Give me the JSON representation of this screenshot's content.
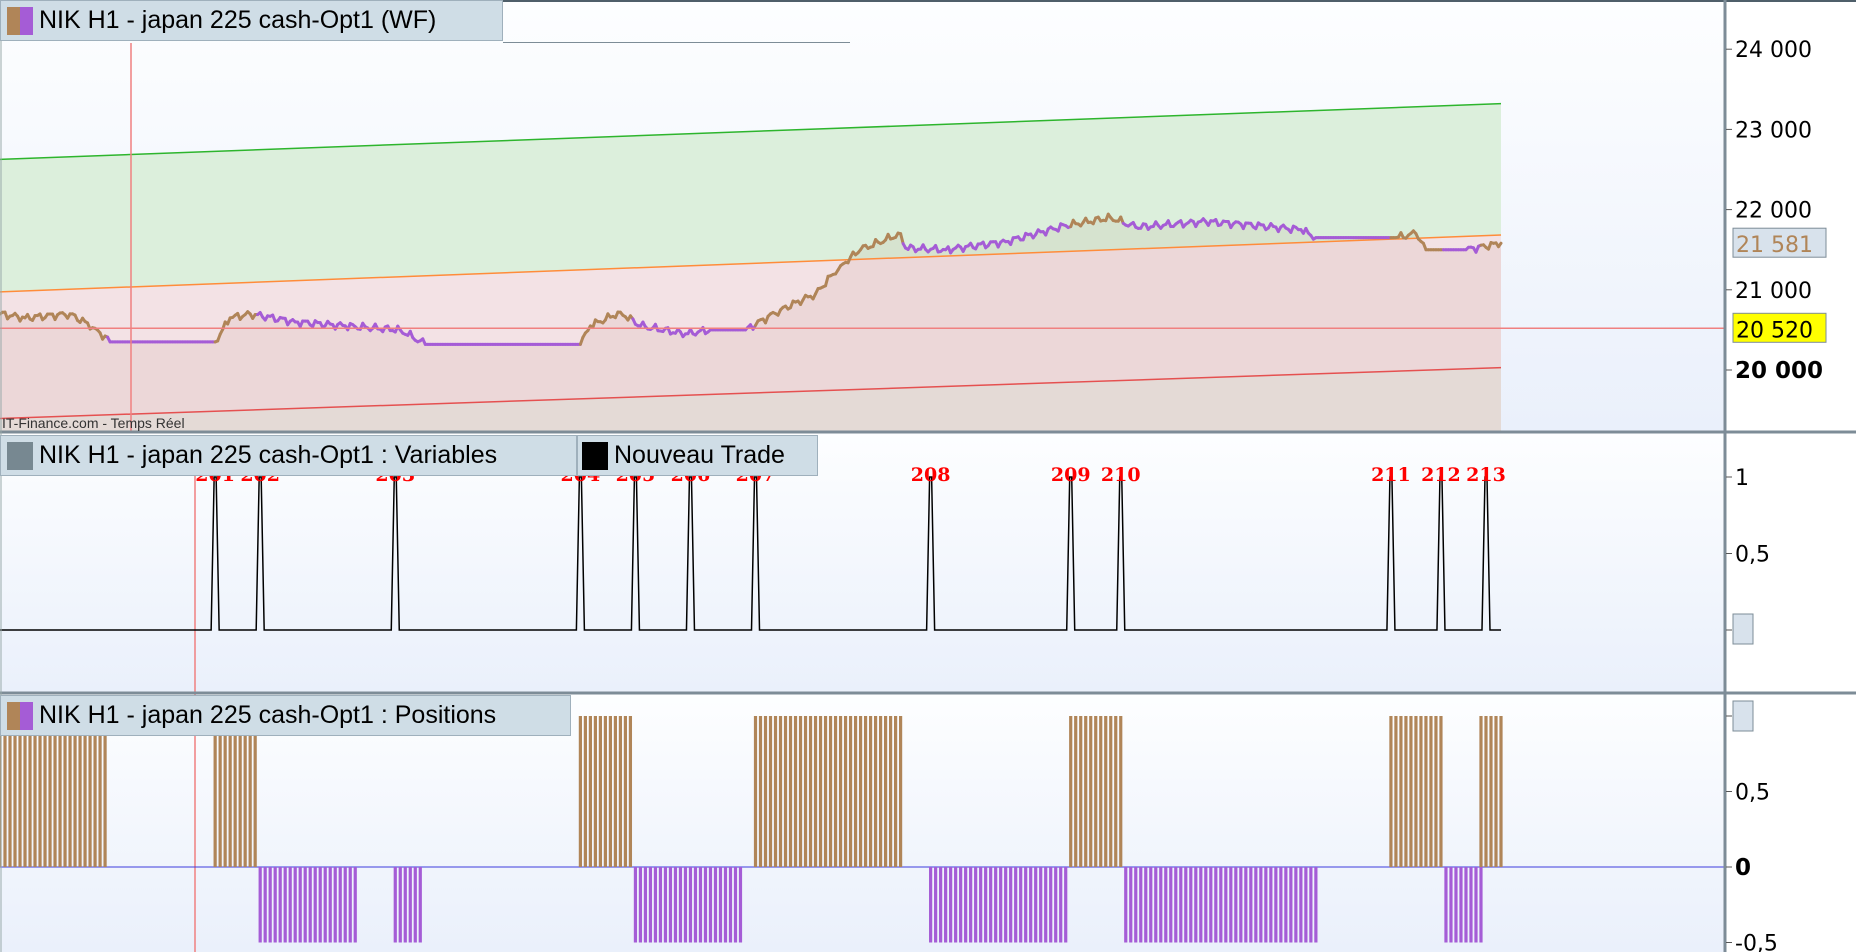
{
  "window": {
    "price_legend": "NIK H1 - japan 225 cash-Opt1 (WF)",
    "variables_legend": "NIK H1 - japan 225 cash-Opt1 : Variables",
    "trade_legend": "Nouveau Trade",
    "positions_legend": "NIK H1 - japan 225 cash-Opt1 : Positions",
    "watermark": "IT-Finance.com - Temps Réel"
  },
  "colors": {
    "long": "#b08558",
    "short": "#a55cd6",
    "upper": "#2db52d",
    "middle": "#ff8c3a",
    "lower": "#e55050",
    "marker": "#ffff00"
  },
  "chart_data": [
    {
      "type": "line",
      "title": "NIK H1 - japan 225 cash-Opt1 (WF)",
      "ylim": [
        19100,
        24500
      ],
      "y_ticks": [
        "24 000",
        "23 000",
        "22 000",
        "21 000",
        "20 000"
      ],
      "y_tick_values": [
        24000,
        23000,
        22000,
        21000,
        20000
      ],
      "last_price_label": "21 581",
      "last_price": 21581,
      "cursor_price_label": "20 520",
      "cursor_price": 20520,
      "x_range": [
        0,
        300
      ],
      "channel": {
        "upper": [
          [
            0,
            22627
          ],
          [
            300,
            23321
          ]
        ],
        "middle": [
          [
            0,
            20974
          ],
          [
            300,
            21683
          ]
        ],
        "lower": [
          [
            0,
            19395
          ],
          [
            300,
            20030
          ]
        ]
      },
      "price_anchors": [
        [
          0,
          20700
        ],
        [
          5,
          20650
        ],
        [
          14,
          20700
        ],
        [
          19,
          20520
        ],
        [
          22,
          20350
        ],
        [
          43,
          20350
        ],
        [
          46,
          20650
        ],
        [
          50,
          20700
        ],
        [
          59,
          20600
        ],
        [
          69,
          20550
        ],
        [
          80,
          20500
        ],
        [
          85,
          20320
        ],
        [
          116,
          20320
        ],
        [
          118,
          20550
        ],
        [
          124,
          20720
        ],
        [
          128,
          20550
        ],
        [
          137,
          20450
        ],
        [
          142,
          20500
        ],
        [
          149,
          20500
        ],
        [
          156,
          20750
        ],
        [
          163,
          20950
        ],
        [
          168,
          21300
        ],
        [
          172,
          21500
        ],
        [
          180,
          21700
        ],
        [
          181,
          21520
        ],
        [
          189,
          21500
        ],
        [
          201,
          21600
        ],
        [
          213,
          21800
        ],
        [
          222,
          21900
        ],
        [
          227,
          21780
        ],
        [
          241,
          21850
        ],
        [
          248,
          21820
        ],
        [
          260,
          21750
        ],
        [
          263,
          21650
        ],
        [
          279,
          21650
        ],
        [
          283,
          21700
        ],
        [
          285,
          21500
        ],
        [
          293,
          21500
        ],
        [
          300,
          21581
        ]
      ]
    },
    {
      "type": "line",
      "title": "Nouveau Trade",
      "ylim": [
        -0.3,
        1.2
      ],
      "y_ticks": [
        "1",
        "0,5",
        "0"
      ],
      "y_tick_values": [
        1,
        0.5,
        0
      ],
      "trades": [
        {
          "label": "201",
          "x": 43
        },
        {
          "label": "202",
          "x": 52
        },
        {
          "label": "203",
          "x": 79
        },
        {
          "label": "204",
          "x": 116
        },
        {
          "label": "205",
          "x": 127
        },
        {
          "label": "206",
          "x": 138
        },
        {
          "label": "207",
          "x": 151
        },
        {
          "label": "208",
          "x": 186
        },
        {
          "label": "209",
          "x": 214
        },
        {
          "label": "210",
          "x": 224
        },
        {
          "label": "211",
          "x": 278
        },
        {
          "label": "212",
          "x": 288
        },
        {
          "label": "213",
          "x": 297
        }
      ]
    },
    {
      "type": "bar",
      "title": "Positions",
      "ylim": [
        -0.55,
        1.1
      ],
      "y_ticks": [
        "1",
        "0,5",
        "0",
        "-0,5"
      ],
      "y_tick_values": [
        1,
        0.5,
        0,
        -0.5
      ],
      "long_intervals": [
        [
          0,
          21,
          0.87
        ],
        [
          43,
          51,
          0.87
        ],
        [
          116,
          126,
          1
        ],
        [
          151,
          180,
          1
        ],
        [
          214,
          224,
          1
        ],
        [
          278,
          288,
          1
        ],
        [
          296,
          300,
          1
        ]
      ],
      "short_intervals": [
        [
          52,
          71,
          -0.5
        ],
        [
          79,
          84,
          -0.5
        ],
        [
          127,
          148,
          -0.5
        ],
        [
          186,
          213,
          -0.5
        ],
        [
          225,
          263,
          -0.5
        ],
        [
          289,
          296,
          -0.5
        ]
      ]
    }
  ]
}
